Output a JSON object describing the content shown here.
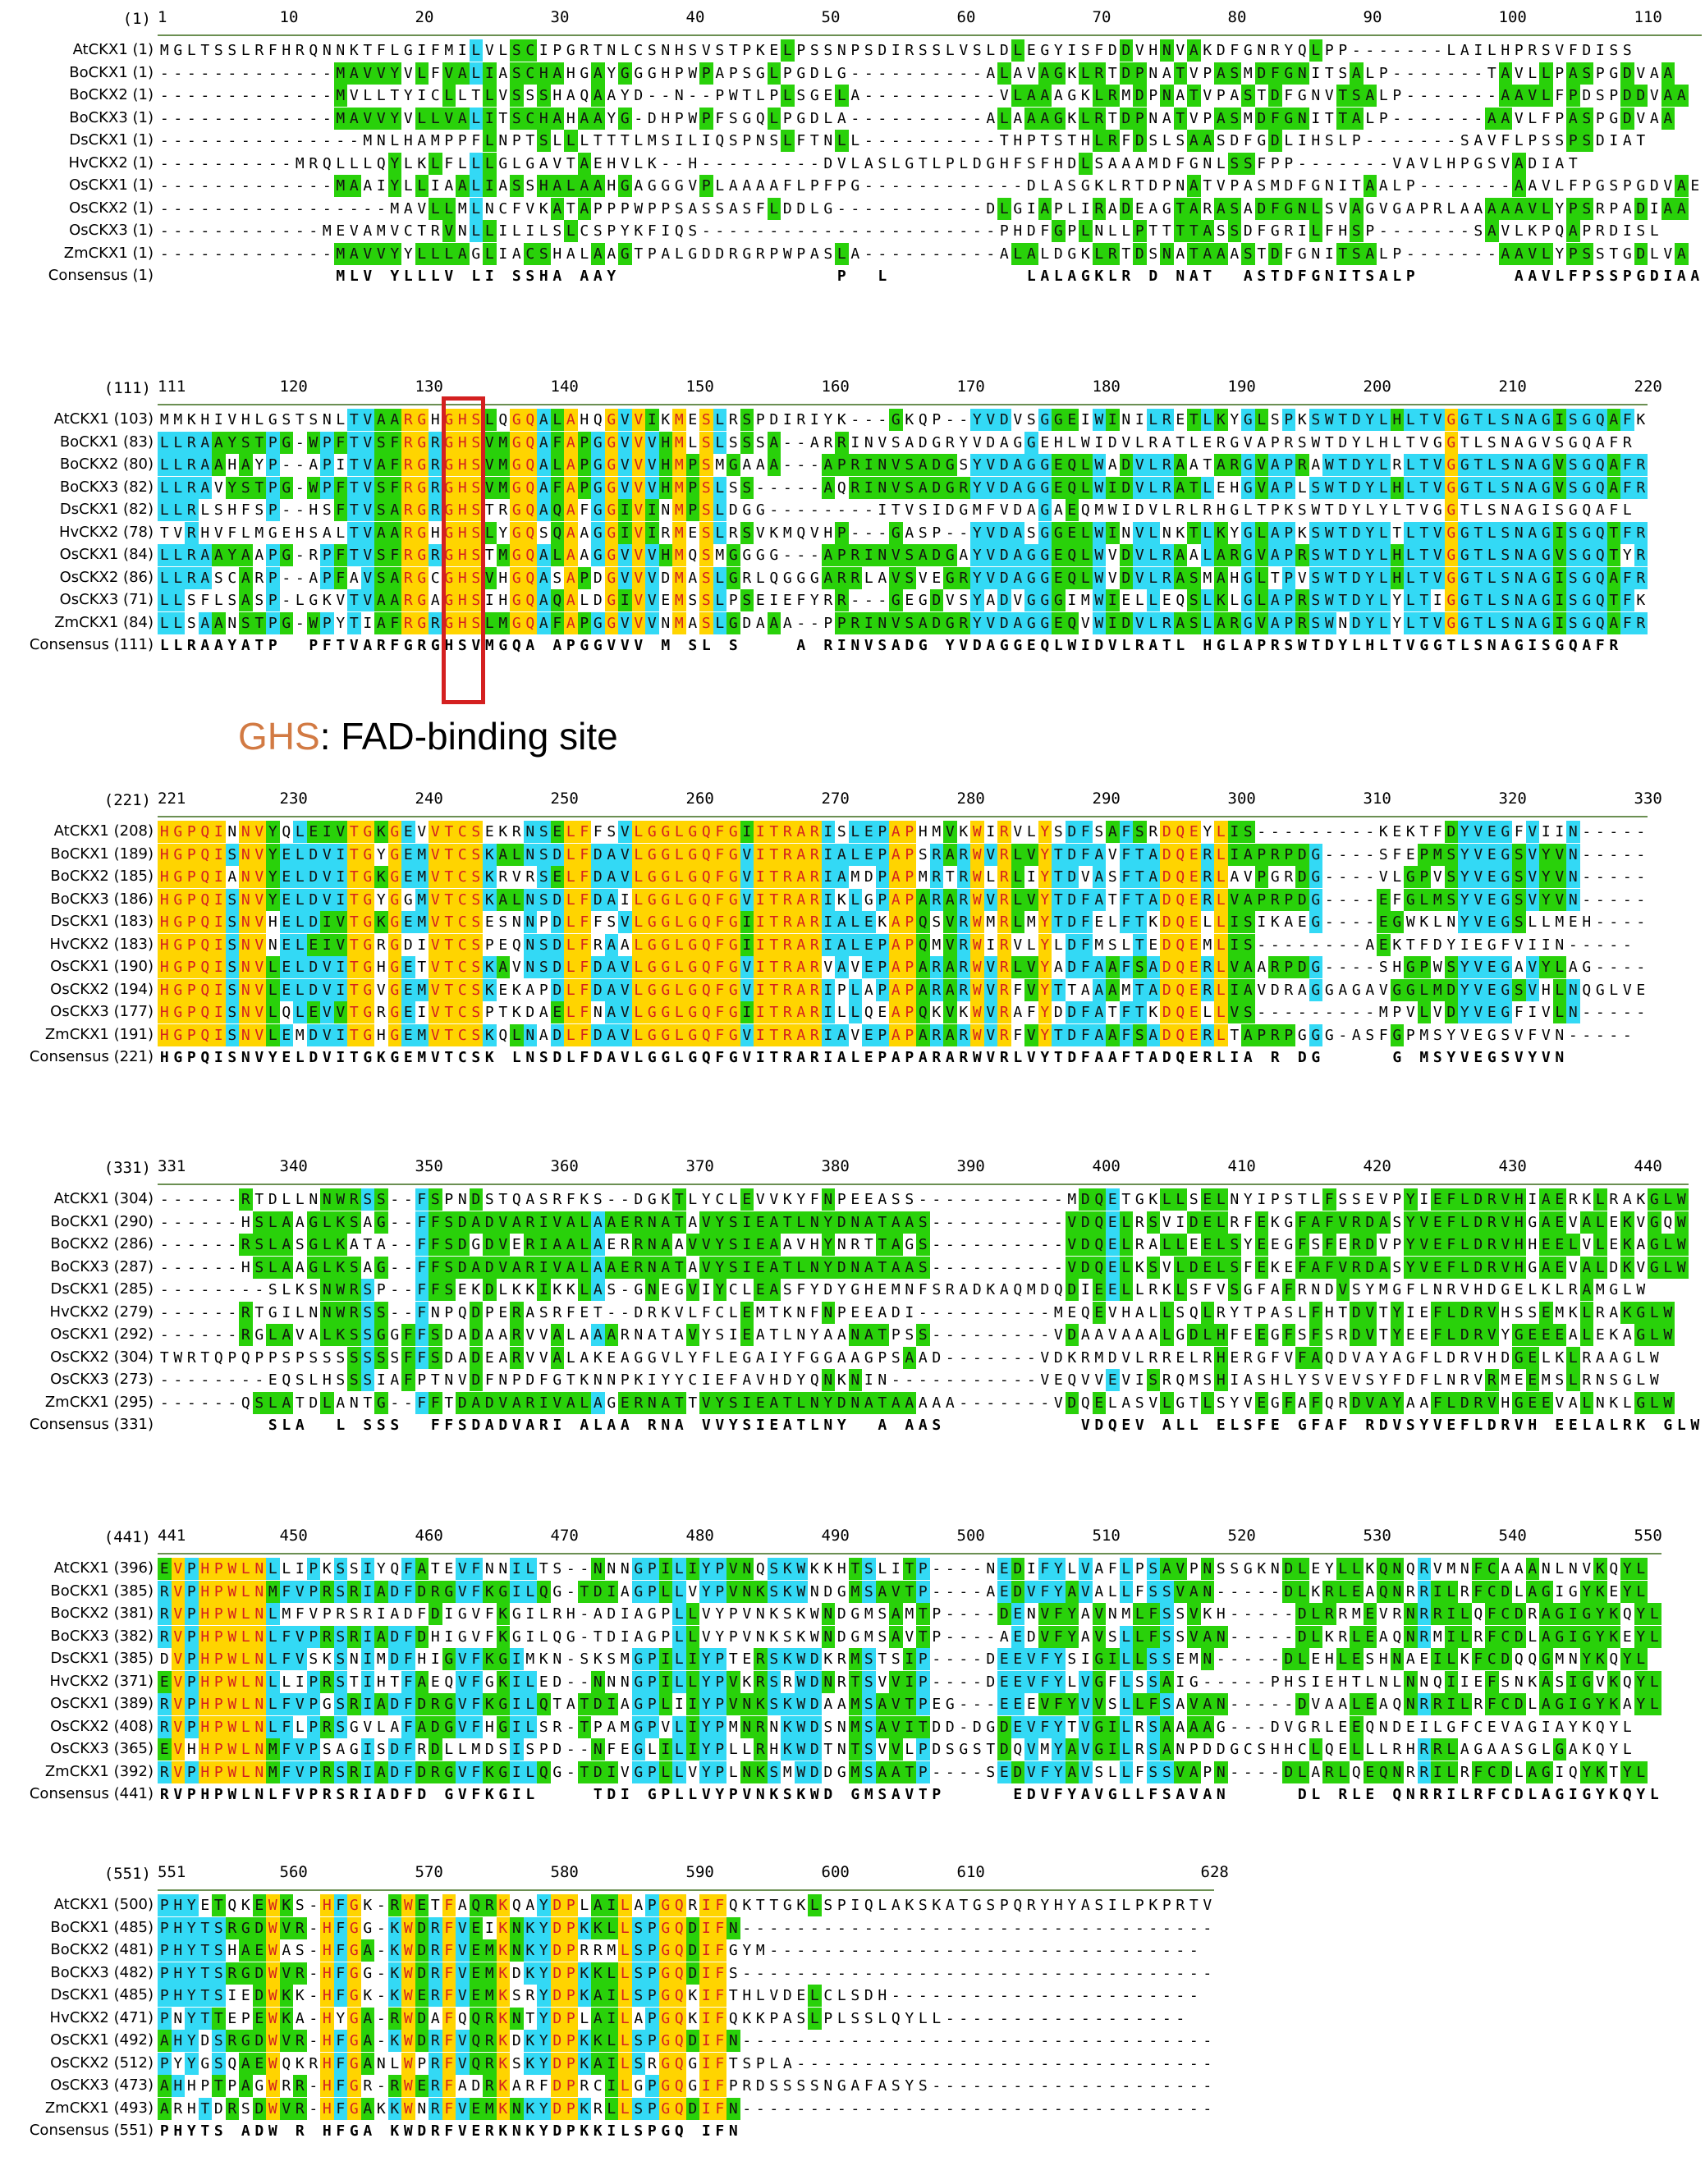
{
  "annotation": {
    "motif": "GHS",
    "rest": ": FAD-binding site"
  },
  "colors": {
    "yellow": "#ffd400",
    "cyan": "#33d9f5",
    "green": "#29d10a",
    "lime": "#b8f000",
    "white": "#ffffff",
    "red": "#d42020",
    "orange": "#d27a43"
  },
  "blocks": [
    {
      "ruler_pos": "(1)",
      "ticks": [
        "1",
        "10",
        "20",
        "30",
        "40",
        "50",
        "60",
        "70",
        "80",
        "90",
        "100",
        "110"
      ],
      "rows": [
        {
          "label": "AtCKX1 (1)",
          "seq": "MGLTSSLRFHRQNNKTFLGIFMILVLSCIPGRTNLCSNHSVSTPKELPSSNPSDIRSSLVSLDLEGYISFDDVHNVAKDFGNRYQLPP-------LAILHPRSVFDISS"
        },
        {
          "label": "BoCKX1 (1)",
          "seq": "-------------MAVVYVLFVALIASCHAHGAYGGGHPWPAPSGLPGDLG----------ALAVAGKLRTDPNATVPASMDFGNITSALP-------TAVLLPASPGDVAA"
        },
        {
          "label": "BoCKX2 (1)",
          "seq": "-------------MVLLTYICLLTLVSSSHAQAAYD--N--PWTLPLSGELA----------VLAAAGKLRMDPNATVPASTDFGNVTSALP-------AAVLFPDSPDDVAA"
        },
        {
          "label": "BoCKX3 (1)",
          "seq": "-------------MAVVYVLLVALITSCHAHAAYG-DHPWPFSGQLPGDLA----------ALAAAGKLRTDPNATVPASMDFGNITTALP-------AAVLFPASPGDVAA"
        },
        {
          "label": "DsCKX1 (1)",
          "seq": "---------------MNLHAMPPFLNPTSLLLTTTLMSILIQSPNSLFTNLL----------THPTSTHLRFDSLSAASDFGDLIHSLP-------SAVFLPSSPSDIAT"
        },
        {
          "label": "HvCKX2 (1)",
          "seq": "----------MRQLLLQYLKLFLLLGLGAVTAEHVLK--H---------DVLASLGTLPLDGHFSFHDLSAAAMDFGNLSSFPP-------VAVLHPGSVADIAT"
        },
        {
          "label": "OsCKX1 (1)",
          "seq": "-------------MAAIYLLIAALIASSHALAAHGAGGGVPLAAAAFLPFPG------------DLASGKLRTDPNATVPASMDFGNITAALP-------AAVLFPGSPGDVAE"
        },
        {
          "label": "OsCKX2 (1)",
          "seq": "-----------------MAVLLMLNCFVKATAPPPWPPSASSASFLDDLG-----------DLGIAPLIRADEAGTARASADFGNLSVAGVGAPRLAAAAAVLYPSRPADIAA"
        },
        {
          "label": "OsCKX3 (1)",
          "seq": "------------MEVAMVCTRVNLLILILSLCSPYKFIQS----------------------PHDFGPLNLLPTTTTASSDFGRILFHSP-------SAVLKPQAPRDISL"
        },
        {
          "label": "ZmCKX1 (1)",
          "seq": "-------------MAVVYYLLLAGLIACSHALAAGTPALGDDRGRPWPASLA----------ALALDGKLRTDSNATAAASTDFGNITSALP-------AAVLYPSSTGDLVA"
        },
        {
          "label": "Consensus (1)",
          "seq": "             MLV YLLLV LI SSHA AAY                P  L          LALAGKLR D NAT  ASTDFGNITSALP       AAVLFPSSPGDIAA",
          "cons": true
        }
      ]
    },
    {
      "ruler_pos": "(111)",
      "ticks": [
        "111",
        "120",
        "130",
        "140",
        "150",
        "160",
        "170",
        "180",
        "190",
        "200",
        "210",
        "220"
      ],
      "rows": [
        {
          "label": "AtCKX1 (103)",
          "seq": "MMKHIVHLGSTSNLTVAARGHGHSLQGQALAHQGVVIKMESLRSPDIRIYK---GKQP--YVDVSGGEIWINILRETLKYGLSPKSWTDYLHLTVGGTLSNAGISGQAFK"
        },
        {
          "label": "BoCKX1 (83)",
          "seq": "LLRAAYSTPG-WPFTVSFRGRGHSVMGQAFAPGGVVVHMLSLSSSA--ARRINVSADGRYVDAGGEHLWIDVLRATLERGVAPRSWTDYLHLTVGGTLSNAGVSGQAFR"
        },
        {
          "label": "BoCKX2 (80)",
          "seq": "LLRAAHAYP--APITVAFRGRGHSVMGQALAPGGVVVHMPSMGAAA---APRINVSADGSYVDAGGEQLWADVLRAATARGVAPRAWTDYLRLTVGGTLSNAGVSGQAFR"
        },
        {
          "label": "BoCKX3 (82)",
          "seq": "LLRAVYSTPG-WPFTVSFRGRGHSVMGQAFAPGGVVVHMPSLSS-----AQRINVSADGRYVDAGGEQLWIDVLRATLEHGVAPLSWTDYLHLTVGGTLSNAGVSGQAFR"
        },
        {
          "label": "DsCKX1 (82)",
          "seq": "LLRLSHFSP--HSFTVSARGRGHSTRGQAQAFGGIVINMPSLDGG--------ITVSIDGMFVDAGAEQMWIDVLRLRHGLTPKSWTDYLYLTVGGTLSNAGISGQAFL"
        },
        {
          "label": "HvCKX2 (78)",
          "seq": "TVRHVFLMGEHSALTVAARGHGHSLYGQSQAAGGIVIRMESLRSVKMQVHP---GASP--YVDASGGELWINVLNKTLKYGLAPKSWTDYLTLTVGGTLSNAGISGQTFR"
        },
        {
          "label": "OsCKX1 (84)",
          "seq": "LLRAAYAAPG-RPFTVSFRGRGHSTMGQALAAGGVVVHMQSMGGGG---APRINVSADGAYVDAGGEQLWVDVLRAALARGVAPRSWTDYLHLTVGGTLSNAGVSGQTYR"
        },
        {
          "label": "OsCKX2 (86)",
          "seq": "LLRASCARP--APFAVSARGCGHSVHGQASAPDGVVVDMASLGRLQGGGARRLAVSVEGRYVDAGGEQLWVDVLRASMAHGLTPVSWTDYLHLTVGGTLSNAGISGQAFR"
        },
        {
          "label": "OsCKX3 (71)",
          "seq": "LLSFLSASP-LGKVTVAARGAGHSIHGQAQALDGIVVEMSSLPSEIEFYRR---GEGDVSYADVGGGIMWIELLEQSLKLGLAPRSWTDYLYLTIGGTLSNAGISGQTFK"
        },
        {
          "label": "ZmCKX1 (84)",
          "seq": "LLSAANSTPG-WPYTIAFRGRGHSLMGQAFAPGGVVVNMASLGDAAA--PPRINVSADGRYVDAGGEQVWIDVLRASLARGVAPRSWNDYLYLTVGGTLSNAGISGQAFR"
        },
        {
          "label": "Consensus (111)",
          "seq": "LLRAAYATP  PFTVARFGRGHSVMGQA APGGVVV M SL S    A RINVSADG YVDAGGEQLWIDVLRATL HGLAPRSWTDYLHLTVGGTLSNAGISGQAFR",
          "cons": true
        }
      ]
    },
    {
      "ruler_pos": "(221)",
      "ticks": [
        "221",
        "230",
        "240",
        "250",
        "260",
        "270",
        "280",
        "290",
        "300",
        "310",
        "320",
        "330"
      ],
      "rows": [
        {
          "label": "AtCKX1 (208)",
          "seq": "HGPQINNVYQLEIVTGKGEVVTCSEKRNSELFFSVLGGLGQFGIITRARISLEPAPHMVKWIRVLYSDFSAFSRDQEYLIS---------KEKTFDYVEGFVIIN-----"
        },
        {
          "label": "BoCKX1 (189)",
          "seq": "HGPQISNVYELDVITGYGEMVTCSKALNSDLFDAVLGGLGQFGVITRARIALEPAPSRARWVRLVYTDFAVFTADQERLIAPRPDG----SFEPMSYVEGSVYVN-----"
        },
        {
          "label": "BoCKX2 (185)",
          "seq": "HGPQIANVYELDVITGKGEMVTCSKRVRSELFDAVLGGLGQFGVITRARIAMDPAPMRTRWLRLIYTDVASFTADQERLAVPGRDG----VLGPVSYVEGSVYVN-----"
        },
        {
          "label": "BoCKX3 (186)",
          "seq": "HGPQISNVYELDVITGYGGMVTCSKALNSDLFDAILGGLGQFGVITRARIKLGPAPARARWVRLVYTDFATFTADQERLVAPRPDG----EFGLMSYVEGSVYVN-----"
        },
        {
          "label": "DsCKX1 (183)",
          "seq": "HGPQISNVHELDIVTGKGEMVTCSESNNPDLFFSVLGGLGQFGIITRARIALEKAPQSVRWMRLMYTDFELFTKDQELLISIKAEG----EGWKLNYVEGSLLMEH----"
        },
        {
          "label": "HvCKX2 (183)",
          "seq": "HGPQISNVNELEIVTGRGDIVTCSPEQNSDLFRAALGGLGQFGIITRARIALEPAPQMVRWIRVLYLDFMSLTEDQEMLIS--------AEKTFDYIEGFVIIN-----"
        },
        {
          "label": "OsCKX1 (190)",
          "seq": "HGPQISNVLELDVITGHGETVTCSKAVNSDLFDAVLGGLGQFGVITRARVAVEPAPARARWVRLVYADFAAFSADQERLVAARPDG----SHGPWSYVEGAVYLAG----"
        },
        {
          "label": "OsCKX2 (194)",
          "seq": "HGPQISNVLELDVITGVGEMVTCSKEKAPDLFDAVLGGLGQFGVITRARIPLAPAPARARWVRFVYTTAAAMTADQERLIAVDRAGGAGAVGGLMDYVEGSVHLNQGLVE"
        },
        {
          "label": "OsCKX3 (177)",
          "seq": "HGPQISNVLQLEVVTGRGEIVTCSPTKDAELFNAVLGGLGQFGIITRARILLQEAPQKVKWVRAFYDDFATFTKDQELLVS---------MPVLVDYVEGFIVLN-----"
        },
        {
          "label": "ZmCKX1 (191)",
          "seq": "HGPQISNVLEMDVITGHGEMVTCSKQLNADLFDAVLGGLGQFGVITRARIAVEPAPARARWVRFVYTDFAAFSADQERLTAPRPGGG-ASFGPMSYVEGSVFVN-----"
        },
        {
          "label": "Consensus (221)",
          "seq": "HGPQISNVYELDVITGKGEMVTCSK LNSDLFDAVLGGLGQFGVITRARIALEPAPARARWVRLVYTDFAAFTADQERLIA R DG     G MSYVEGSVYVN     ",
          "cons": true
        }
      ]
    },
    {
      "ruler_pos": "(331)",
      "ticks": [
        "331",
        "340",
        "350",
        "360",
        "370",
        "380",
        "390",
        "400",
        "410",
        "420",
        "430",
        "440"
      ],
      "rows": [
        {
          "label": "AtCKX1 (304)",
          "seq": "------RTDLLNNWRSS--FSPNDSTQASRFKS--DGKTLYCLEVVKYFNPEEASS-----------MDQETGKLLSELNYIPSTLFSSEVPYIEFLDRVHIAERKLRAKGLW"
        },
        {
          "label": "BoCKX1 (290)",
          "seq": "------HSLAAGLKSAG--FFSDADVARIVALAAERNATAVYSIEATLNYDNATAAS----------VDQELRSVIDELRFEKGFAFVRDASYVEFLDRVHGAEVALEKVGQW"
        },
        {
          "label": "BoCKX2 (286)",
          "seq": "------RSLASGLKATA--FFSDGDVERIAALAERRNAAVVYSIEAAVHYNRTTAGS----------VDQELRALLEELSYEEGFSFERDVPYVEFLDRVHHEELVLEKAGLW"
        },
        {
          "label": "BoCKX3 (287)",
          "seq": "------HSLAAGLKSAG--FFSDADVARIVALAAERNATAVYSIEATLNYDNATAAS----------VDQELKSVLDELSFEKEFAFVRDASYVEFLDRVHGAEVALDKVGLW"
        },
        {
          "label": "DsCKX1 (285)",
          "seq": "--------SLKSNWRSP--FFSEKDLKKIKKLAS-GNEGVIYCLEASFYDYGHEMNFSRADKAQMDQDIEELLRKLSFVSGFAFRNDVSYMGFLNRVHDGELKLRAMGLW"
        },
        {
          "label": "HvCKX2 (279)",
          "seq": "------RTGILNNWRSS--FNPQDPERASRFET--DRKVLFCLEMTKNFNPEEADI----------MEQEVHALLSQLRYTPASLFHTDVTYIEFLDRVHSSEMKLRAKGLW"
        },
        {
          "label": "OsCKX1 (292)",
          "seq": "------RGLAVALKSSGGFFSDADAARVVALAAARNATAVYSIEATLNYAANATPSS---------VDAAVAAALGDLHFEEGFSFSRDVTYEEFLDRVYGEEEALEKAGLW"
        },
        {
          "label": "OsCKX2 (304)",
          "seq": "TWRTQPQPPSPSSSSSSSFFSDADEARVVALAKEAGGVLYFLEGAIYFGGAAGPSAAD-------VDKRMDVLRRELRHERGFVFAQDVAYAGFLDRVHDGELKLRAAGLW"
        },
        {
          "label": "OsCKX3 (273)",
          "seq": "--------EQSLHSSSIAFPTNVDFNPDFGTKNNPKIYYCIEFAVHDYQNKNIN-----------VEQVVEVISRQMSHIASHLYSVEVSYFDFLNRVRMEEMSLRNSGLW"
        },
        {
          "label": "ZmCKX1 (295)",
          "seq": "------QSLATDLANTG--FFTDADVARIVALAGERNATTVYSIEATLNYDNATAAAAA-------VDQELASVLGTLSYVEGFAFQRDVAYAAFLDRVHGEEVALNKLGLW"
        },
        {
          "label": "Consensus (331)",
          "seq": "        SLA  L SSS  FFSDADVARI ALAA RNA VVYSIEATLNY  A AAS          VDQEV ALL ELSFE GFAF RDVSYVEFLDRVH EELALRK GLW",
          "cons": true
        }
      ]
    },
    {
      "ruler_pos": "(441)",
      "ticks": [
        "441",
        "450",
        "460",
        "470",
        "480",
        "490",
        "500",
        "510",
        "520",
        "530",
        "540",
        "550"
      ],
      "rows": [
        {
          "label": "AtCKX1 (396)",
          "seq": "EVPHPWLNLLIPKSSIYQFATEVFNNILTS--NNNGPILIYPVNQSKWKKHTSLITP----NEDIFYLVAFLPSAVPNSSGKNDLEYLLKQNQRVMNFCAAANLNVKQYL"
        },
        {
          "label": "BoCKX1 (385)",
          "seq": "RVPHPWLNMFVPRSRIADFDRGVFKGILQG-TDIAGPLLVYPVNKSKWNDGMSAVTP----AEDVFYAVALLFSSVAN-----DLKRLEAQNRRILRFCDLAGIGYKEYL"
        },
        {
          "label": "BoCKX2 (381)",
          "seq": "RVPHPWLNLMFVPRSRIADFDIGVFKGILRH-ADIAGPLLVYPVNKSKWNDGMSAMTP----DENVFYAVNMLFSSVKH-----DLRRMEVRNRRILQFCDRAGIGYKQYL"
        },
        {
          "label": "BoCKX3 (382)",
          "seq": "RVPHPWLNLFVPRSRIADFDHIGVFKGILQG-TDIAGPLLVYPVNKSKWNDGMSAVTP----AEDVFYAVSLLFSSVAN-----DLKRLEAQNRMILRFCDLAGIGYKEYL"
        },
        {
          "label": "DsCKX1 (385)",
          "seq": "DVPHPWLNLFVSKSNIMDFHIGVFKGIMKN-SKSMGPILIYPTERSKWDKRMSTSIP----DEEVFYSIGILLSSEMN-----DLEHLESHNAEILKFCDQQGMNYKQYL"
        },
        {
          "label": "HvCKX2 (371)",
          "seq": "EVPHPWLNLLIPRSTIHTFAEQVFGKILED--NNNGPILLYPVKRSRWDNRTSVVIP----DEEVFYLVGFLSSAIG-----PHSIEHTLNLNNQIIEFSNKASIGVKQYL"
        },
        {
          "label": "OsCKX1 (389)",
          "seq": "RVPHPWLNLFVPGSRIADFDRGVFKGILQTATDIAGPLIIYPVNKSKWDAAMSAVTPEG---EEEVFYVVSLLFSAVAN-----DVAALEAQNRRILRFCDLAGIGYKAYL"
        },
        {
          "label": "OsCKX2 (408)",
          "seq": "RVPHPWLNLFLPRSGVLAFADGVFHGILSR-TPAMGPVLIYPMNRNKWDSNMSAVITDD-DGDEVFYTVGILRSAAAAG---DVGRLEEQNDEILGFCEVAGIAYKQYL"
        },
        {
          "label": "OsCKX3 (365)",
          "seq": "EVHHPWLNMFVPSAGISDFRDLLMDSISPD--NFEGLILIYPLLRHKWDTNTSVVLPDSGSTDQVMYAVGILRSANPDDGCSHHCLQELLLRHRRLAGAASGLGAKQYL"
        },
        {
          "label": "ZmCKX1 (392)",
          "seq": "RVPHPWLNMFVPRSRIADFDRGVFKGILQG-TDIVGPLLVYPLNKSMWDDGMSAATP----SEDVFYAVSLLFSSVAPN----DLARLQEQNRRILRFCDLAGIQYKTYL"
        },
        {
          "label": "Consensus (441)",
          "seq": "RVPHPWLNLFVPRSRIADFD GVFKGIL    TDI GPLLVYPVNKSKWD GMSAVTP     EDVFYAVGLLFSAVAN     DL RLE QNRRILRFCDLAGIGYKQYL",
          "cons": true
        }
      ]
    },
    {
      "ruler_pos": "(551)",
      "ticks": [
        "551",
        "560",
        "570",
        "580",
        "590",
        "600",
        "610",
        "628"
      ],
      "rows": [
        {
          "label": "AtCKX1 (500)",
          "seq": "PHYETQKEWKS-HFGK-RWETFAQRKQAYDPLAILAPGQRIFQKTTGKLSPIQLAKSKATGSPQRYHYASILPKPRTV"
        },
        {
          "label": "BoCKX1 (485)",
          "seq": "PHYTSRGDWVR-HFGG-KWDRFVEIKNKYDPKKLLSPGQDIFN-----------------------------------"
        },
        {
          "label": "BoCKX2 (481)",
          "seq": "PHYTSHAEWAS-HFGA-KWDRFVEMKNKYDPRRMLSPGQDIFGYM--------------------------------"
        },
        {
          "label": "BoCKX3 (482)",
          "seq": "PHYTSRGDWVR-HFGG-KWDRFVEMKDKYDPKKLLSPGQDIFS-----------------------------------"
        },
        {
          "label": "DsCKX1 (485)",
          "seq": "PHYTSIEDWKK-HFGK-KWERFVEMKSRYDPKAILSPGQKIFTHLVDELCLSDH-----------------------"
        },
        {
          "label": "HvCKX2 (471)",
          "seq": "PNYTTEPEWKA-HYGA-RWDAFQQRKNTYDPLAILAPGQKIFQKKPASLPLSSLQYLL------------------"
        },
        {
          "label": "OsCKX1 (492)",
          "seq": "AHYDSRGDWVR-HFGA-KWDRFVQRKDKYDPKKLLSPGQDIFN-----------------------------------"
        },
        {
          "label": "OsCKX2 (512)",
          "seq": "PYYGSQAEWQKRHFGANLWPRFVQRKSKYDPKAILSRGQGIFTSPLA-------------------------------"
        },
        {
          "label": "OsCKX3 (473)",
          "seq": "AHHPTPAGWRR-HFGR-RWERFADRKARFDPRCILGPGQGIFPRDSSSSNGAFASYS---------------------"
        },
        {
          "label": "ZmCKX1 (493)",
          "seq": "ARHTDRSDWVR-HFGAKKWNRFVEMKNKYDPKRLLSPGQDIFN-----------------------------------"
        },
        {
          "label": "Consensus (551)",
          "seq": "PHYTS ADW R HFGA KWDRFVERKNKYDPKKILSPGQ IFN",
          "cons": true
        }
      ]
    }
  ]
}
